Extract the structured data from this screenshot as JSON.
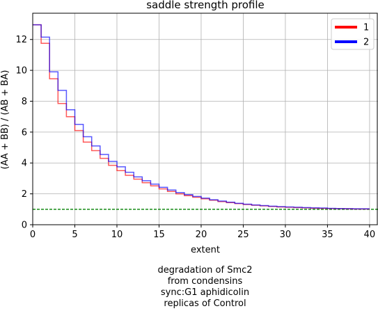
{
  "chart_data": {
    "type": "line",
    "title": "saddle strength profile",
    "xlabel": "extent",
    "ylabel": "(AA + BB) / (AB + BA)",
    "xlim": [
      0,
      41
    ],
    "ylim": [
      0,
      13.7
    ],
    "xticks": [
      0,
      5,
      10,
      15,
      20,
      25,
      30,
      35,
      40
    ],
    "yticks": [
      0,
      2,
      4,
      6,
      8,
      10,
      12
    ],
    "grid": true,
    "legend_position": "top-right",
    "step_style": "steps-post",
    "reference_line": {
      "y": 1.0,
      "color": "#008000",
      "style": "dashed"
    },
    "series": [
      {
        "name": "1",
        "color": "#ff0000",
        "x": [
          0,
          1,
          2,
          3,
          4,
          5,
          6,
          7,
          8,
          9,
          10,
          11,
          12,
          13,
          14,
          15,
          16,
          17,
          18,
          19,
          20,
          21,
          22,
          23,
          24,
          25,
          26,
          27,
          28,
          29,
          30,
          31,
          32,
          33,
          34,
          35,
          36,
          37,
          38,
          39
        ],
        "y": [
          12.95,
          11.75,
          9.45,
          7.85,
          7.0,
          6.1,
          5.35,
          4.8,
          4.3,
          3.85,
          3.5,
          3.2,
          2.95,
          2.72,
          2.52,
          2.32,
          2.15,
          2.0,
          1.88,
          1.78,
          1.68,
          1.59,
          1.5,
          1.43,
          1.37,
          1.31,
          1.26,
          1.22,
          1.18,
          1.15,
          1.13,
          1.11,
          1.09,
          1.07,
          1.06,
          1.05,
          1.04,
          1.03,
          1.02,
          1.02
        ]
      },
      {
        "name": "2",
        "color": "#0000ff",
        "x": [
          0,
          1,
          2,
          3,
          4,
          5,
          6,
          7,
          8,
          9,
          10,
          11,
          12,
          13,
          14,
          15,
          16,
          17,
          18,
          19,
          20,
          21,
          22,
          23,
          24,
          25,
          26,
          27,
          28,
          29,
          30,
          31,
          32,
          33,
          34,
          35,
          36,
          37,
          38,
          39
        ],
        "y": [
          12.95,
          12.15,
          9.9,
          8.7,
          7.45,
          6.5,
          5.7,
          5.1,
          4.55,
          4.1,
          3.75,
          3.4,
          3.1,
          2.85,
          2.63,
          2.42,
          2.25,
          2.08,
          1.95,
          1.83,
          1.72,
          1.62,
          1.53,
          1.46,
          1.39,
          1.33,
          1.28,
          1.24,
          1.2,
          1.17,
          1.15,
          1.13,
          1.11,
          1.09,
          1.08,
          1.06,
          1.05,
          1.04,
          1.03,
          1.03
        ]
      }
    ]
  },
  "caption_lines": [
    "degradation of Smc2",
    "from condensins",
    "sync:G1 aphidicolin",
    "replicas of Control"
  ]
}
